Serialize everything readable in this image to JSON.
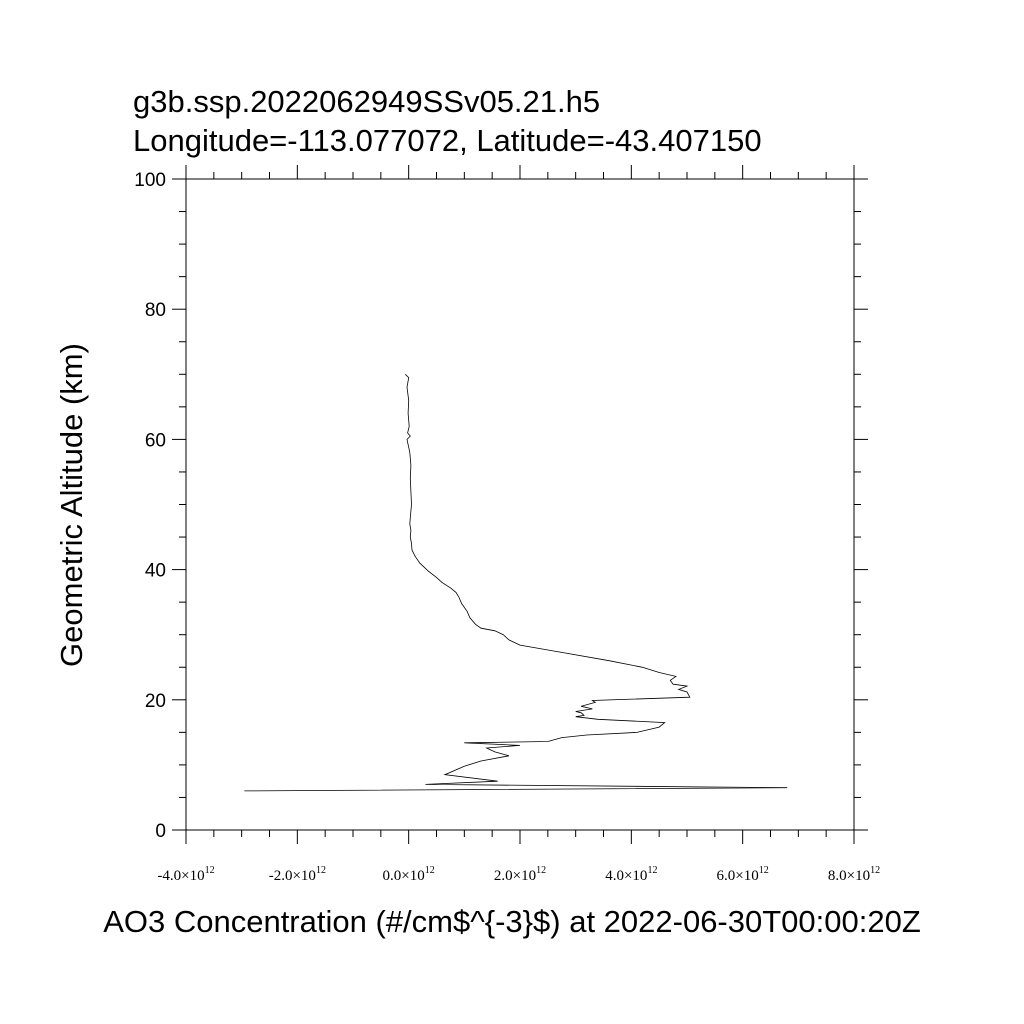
{
  "chart_data": {
    "type": "line",
    "title_lines": [
      "g3b.ssp.2022062949SSv05.21.h5",
      "Longitude=-113.077072, Latitude=-43.407150"
    ],
    "xlabel": "AO3 Concentration (#/cm$^{-3}$) at 2022-06-30T00:00:20Z",
    "ylabel": "Geometric Altitude (km)",
    "xlim": [
      -4000000000000.0,
      8000000000000.0
    ],
    "ylim": [
      0,
      100
    ],
    "x_ticks": [
      {
        "value": -4000000000000.0,
        "mantissa": "-4.0",
        "times": "×10",
        "exp": "12"
      },
      {
        "value": -2000000000000.0,
        "mantissa": "-2.0",
        "times": "×10",
        "exp": "12"
      },
      {
        "value": 0.0,
        "mantissa": "0.0",
        "times": "×10",
        "exp": "12"
      },
      {
        "value": 2000000000000.0,
        "mantissa": "2.0",
        "times": "×10",
        "exp": "12"
      },
      {
        "value": 4000000000000.0,
        "mantissa": "4.0",
        "times": "×10",
        "exp": "12"
      },
      {
        "value": 6000000000000.0,
        "mantissa": "6.0",
        "times": "×10",
        "exp": "12"
      },
      {
        "value": 8000000000000.0,
        "mantissa": "8.0",
        "times": "×10",
        "exp": "12"
      }
    ],
    "y_ticks": [
      "0",
      "20",
      "40",
      "60",
      "80",
      "100"
    ],
    "grid": false,
    "series": [
      {
        "points": [
          [
            -2950000000000.0,
            6.0
          ],
          [
            6800000000000.0,
            6.5
          ],
          [
            300000000000.0,
            7.0
          ],
          [
            1600000000000.0,
            7.5
          ],
          [
            650000000000.0,
            8.5
          ],
          [
            1000000000000.0,
            9.8
          ],
          [
            1300000000000.0,
            10.6
          ],
          [
            1800000000000.0,
            11.4
          ],
          [
            1550000000000.0,
            12.0
          ],
          [
            1400000000000.0,
            12.6
          ],
          [
            2000000000000.0,
            13.0
          ],
          [
            1000000000000.0,
            13.4
          ],
          [
            2500000000000.0,
            13.6
          ],
          [
            2750000000000.0,
            14.2
          ],
          [
            3200000000000.0,
            14.6
          ],
          [
            4100000000000.0,
            15.0
          ],
          [
            4500000000000.0,
            15.8
          ],
          [
            4600000000000.0,
            16.5
          ],
          [
            3400000000000.0,
            17.0
          ],
          [
            3000000000000.0,
            17.4
          ],
          [
            3150000000000.0,
            17.6
          ],
          [
            3100000000000.0,
            18.0
          ],
          [
            3000000000000.0,
            18.2
          ],
          [
            3300000000000.0,
            18.6
          ],
          [
            3100000000000.0,
            19.0
          ],
          [
            3350000000000.0,
            19.6
          ],
          [
            3300000000000.0,
            19.9
          ],
          [
            5050000000000.0,
            20.4
          ],
          [
            5000000000000.0,
            21.2
          ],
          [
            4850000000000.0,
            21.6
          ],
          [
            5000000000000.0,
            22.1
          ],
          [
            4750000000000.0,
            22.4
          ],
          [
            4700000000000.0,
            23.0
          ],
          [
            4800000000000.0,
            23.6
          ],
          [
            4500000000000.0,
            24.2
          ],
          [
            4200000000000.0,
            25.0
          ],
          [
            3600000000000.0,
            26.0
          ],
          [
            2800000000000.0,
            27.2
          ],
          [
            2000000000000.0,
            28.4
          ],
          [
            1800000000000.0,
            29.2
          ],
          [
            1700000000000.0,
            30.0
          ],
          [
            1550000000000.0,
            30.6
          ],
          [
            1300000000000.0,
            31.0
          ],
          [
            1200000000000.0,
            31.6
          ],
          [
            1100000000000.0,
            32.6
          ],
          [
            1050000000000.0,
            33.6
          ],
          [
            950000000000.0,
            34.8
          ],
          [
            900000000000.0,
            35.8
          ],
          [
            850000000000.0,
            36.5
          ],
          [
            750000000000.0,
            37.2
          ],
          [
            600000000000.0,
            38.0
          ],
          [
            500000000000.0,
            38.8
          ],
          [
            350000000000.0,
            39.8
          ],
          [
            200000000000.0,
            41.0
          ],
          [
            120000000000.0,
            42.0
          ],
          [
            60000000000.0,
            43.0
          ],
          [
            50000000000.0,
            44.0
          ],
          [
            30000000000.0,
            45.0
          ],
          [
            40000000000.0,
            46.0
          ],
          [
            20000000000.0,
            47.0
          ],
          [
            30000000000.0,
            48.0
          ],
          [
            50000000000.0,
            50.0
          ],
          [
            40000000000.0,
            52.0
          ],
          [
            30000000000.0,
            54.0
          ],
          [
            40000000000.0,
            56.0
          ],
          [
            20000000000.0,
            58.0
          ],
          [
            -30000000000.0,
            60.0
          ],
          [
            30000000000.0,
            60.5
          ],
          [
            -20000000000.0,
            61.0
          ],
          [
            10000000000.0,
            62.0
          ],
          [
            -10000000000.0,
            64.0
          ],
          [
            0.0,
            66.0
          ],
          [
            -30000000000.0,
            68.0
          ],
          [
            0.0,
            69.5
          ],
          [
            -60000000000.0,
            70.0
          ]
        ]
      }
    ]
  }
}
